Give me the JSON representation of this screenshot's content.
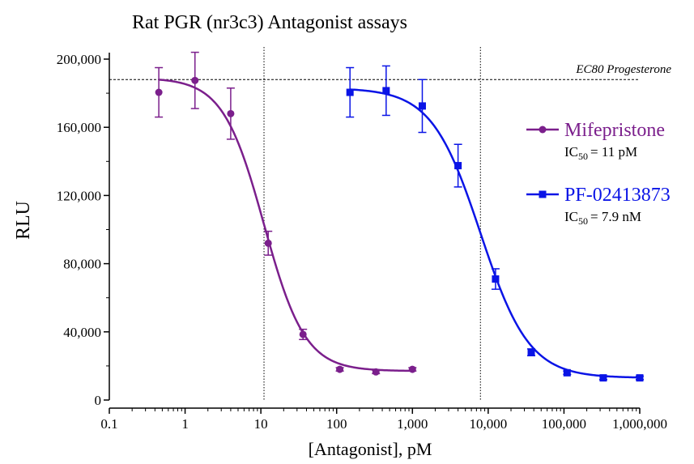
{
  "chart_data": {
    "type": "scatter",
    "title": "Rat PGR (nr3c3) Antagonist assays",
    "xlabel": "[Antagonist], pM",
    "ylabel": "RLU",
    "x_scale": "log",
    "xlim": [
      0.1,
      1000000
    ],
    "ylim": [
      0,
      200000
    ],
    "x_tick_values": [
      0.1,
      1,
      10,
      100,
      1000,
      10000,
      100000,
      1000000
    ],
    "x_tick_labels": [
      "0.1",
      "1",
      "10",
      "100",
      "1,000",
      "10,000",
      "100,000",
      "1,000,000"
    ],
    "y_tick_values": [
      0,
      40000,
      80000,
      120000,
      160000,
      200000
    ],
    "y_tick_labels": [
      "0",
      "40,000",
      "80,000",
      "120,000",
      "160,000",
      "200,000"
    ],
    "reference_line": {
      "label": "EC80 Progesterone",
      "y": 188000
    },
    "ic50_lines_x": [
      11,
      7900
    ],
    "series": [
      {
        "name": "Mifepristone",
        "color": "#7B1F8C",
        "marker": "circle",
        "ic50_text": "IC50 = 11 pM",
        "ic50_value": "= 11 pM",
        "fit": {
          "top": 189000,
          "bottom": 17000,
          "ic50": 11,
          "hill": 1.6
        },
        "points": [
          {
            "x": 0.45,
            "y": 180500,
            "err": 14500
          },
          {
            "x": 1.35,
            "y": 187500,
            "err": 16500
          },
          {
            "x": 4.0,
            "y": 168000,
            "err": 15000
          },
          {
            "x": 12.5,
            "y": 92000,
            "err": 7000
          },
          {
            "x": 36,
            "y": 38500,
            "err": 3000
          },
          {
            "x": 110,
            "y": 18000,
            "err": 1000
          },
          {
            "x": 330,
            "y": 16500,
            "err": 1000
          },
          {
            "x": 1000,
            "y": 18000,
            "err": 1000
          }
        ]
      },
      {
        "name": "PF-02413873",
        "color": "#0A14E6",
        "marker": "square",
        "ic50_text": "IC50 = 7.9 nM",
        "ic50_value": "= 7.9 nM",
        "fit": {
          "top": 183000,
          "bottom": 13000,
          "ic50": 7900,
          "hill": 1.35
        },
        "points": [
          {
            "x": 150,
            "y": 180500,
            "err": 14500
          },
          {
            "x": 450,
            "y": 181500,
            "err": 14500
          },
          {
            "x": 1350,
            "y": 172500,
            "err": 15500
          },
          {
            "x": 4000,
            "y": 137500,
            "err": 12500
          },
          {
            "x": 12500,
            "y": 71000,
            "err": 6000
          },
          {
            "x": 37000,
            "y": 28000,
            "err": 2000
          },
          {
            "x": 110000,
            "y": 16000,
            "err": 1000
          },
          {
            "x": 330000,
            "y": 13000,
            "err": 1000
          },
          {
            "x": 1000000,
            "y": 13000,
            "err": 1000
          }
        ]
      }
    ]
  }
}
